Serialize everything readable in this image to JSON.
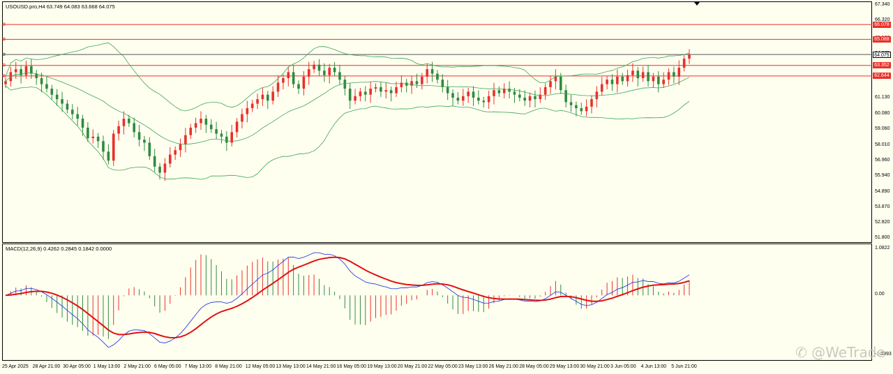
{
  "chart_title": "USOUSD.pro,H4  63.749 64.083 63.668 64.075",
  "macd_title": "MACD(12,26,9) 0.4262 0.2845 0.1842 0.0000",
  "price_ticks": [
    "67.340",
    "66.320",
    "65.100",
    "64.075",
    "63.352",
    "62.644",
    "61.130",
    "60.080",
    "59.060",
    "58.010",
    "56.960",
    "55.940",
    "54.890",
    "53.870",
    "52.820",
    "51.800"
  ],
  "macd_ticks": [
    "1.0822",
    "0.00",
    "-1.3993"
  ],
  "time_labels": [
    "25 Apr 2025",
    "28 Apr 21:00",
    "30 Apr 05:00",
    "1 May 13:00",
    "2 May 21:00",
    "6 May 05:00",
    "7 May 13:00",
    "8 May 21:00",
    "12 May 05:00",
    "13 May 13:00",
    "14 May 21:00",
    "16 May 05:00",
    "19 May 13:00",
    "20 May 21:00",
    "22 May 05:00",
    "23 May 13:00",
    "26 May 21:00",
    "28 May 05:00",
    "29 May 13:00",
    "30 May 21:00",
    "3 Jun 05:00",
    "4 Jun 13:00",
    "5 Jun 21:00"
  ],
  "hlines": [
    {
      "label": "66.078",
      "price": 66.078,
      "color": "#e8312a"
    },
    {
      "label": "65.088",
      "price": 65.088,
      "color": "#e8312a"
    },
    {
      "label": "64.075",
      "price": 64.075,
      "color": "#555555",
      "current": true
    },
    {
      "label": "63.352",
      "price": 63.352,
      "color": "#e8312a"
    },
    {
      "label": "62.644",
      "price": 62.644,
      "color": "#e8312a"
    }
  ],
  "watermark": "@WeTrade",
  "colors": {
    "bull": "#e8312a",
    "bear": "#2e8b3e",
    "band": "#3aa655",
    "macd_main": "#2a3fe0",
    "macd_signal": "#e01010"
  },
  "chart_data": {
    "type": "candlestick",
    "symbol": "USOUSD.pro",
    "timeframe": "H4",
    "ohlc_last": {
      "open": 63.749,
      "high": 64.083,
      "low": 63.668,
      "close": 64.075
    },
    "y_range": [
      51.8,
      67.34
    ],
    "closes": [
      62.3,
      62.9,
      63.1,
      62.7,
      63.3,
      62.8,
      62.5,
      62.1,
      61.8,
      61.4,
      61.1,
      60.8,
      60.4,
      60.1,
      59.8,
      59.2,
      58.5,
      58.6,
      58.3,
      57.6,
      57.0,
      58.8,
      59.3,
      59.8,
      59.5,
      58.9,
      58.4,
      58.2,
      57.3,
      56.6,
      56.2,
      56.8,
      57.4,
      57.7,
      58.1,
      58.7,
      59.2,
      59.5,
      59.8,
      59.4,
      59.1,
      58.8,
      58.6,
      58.2,
      58.9,
      59.6,
      60.1,
      60.5,
      60.8,
      61.1,
      61.4,
      61.0,
      61.6,
      62.2,
      62.5,
      62.9,
      62.1,
      61.8,
      62.6,
      63.1,
      63.4,
      63.0,
      62.7,
      63.2,
      62.9,
      62.4,
      61.8,
      61.0,
      61.3,
      61.6,
      61.4,
      61.8,
      61.9,
      61.6,
      61.7,
      61.5,
      61.9,
      62.2,
      62.0,
      62.3,
      62.1,
      62.6,
      63.1,
      62.8,
      62.4,
      61.9,
      61.5,
      61.2,
      61.0,
      61.3,
      61.6,
      61.2,
      61.0,
      60.9,
      61.3,
      61.7,
      61.5,
      61.8,
      61.6,
      61.4,
      61.2,
      61.0,
      61.3,
      61.1,
      61.4,
      61.9,
      62.3,
      62.6,
      61.7,
      60.9,
      60.7,
      60.5,
      60.3,
      60.6,
      61.1,
      61.6,
      62.1,
      62.4,
      62.1,
      62.6,
      62.3,
      62.7,
      63.0,
      62.5,
      62.9,
      62.3,
      62.6,
      62.1,
      62.4,
      62.9,
      62.6,
      63.2,
      63.8,
      64.07
    ],
    "macd_main_range": [
      -1.3993,
      1.0822
    ]
  }
}
